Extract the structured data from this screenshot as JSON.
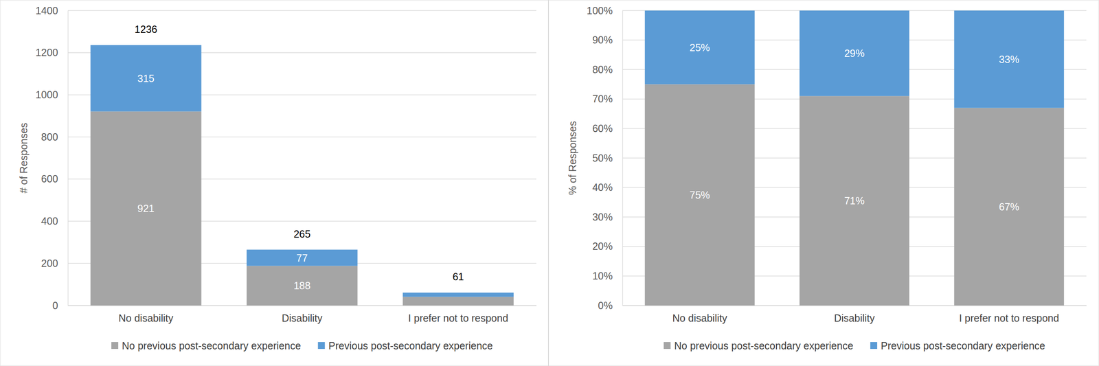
{
  "chart_data": [
    {
      "type": "bar",
      "stacked": true,
      "data_labels": true,
      "grid": true,
      "legend": "bottom",
      "y_label": "# of Responses",
      "categories": [
        "No disability",
        "Disability",
        "I prefer not to respond"
      ],
      "series": [
        {
          "name": "No previous post-secondary experience",
          "color": "#a5a5a5",
          "values": [
            921,
            188,
            41
          ],
          "value_labels": [
            "921",
            "188",
            null
          ]
        },
        {
          "name": "Previous post-secondary experience",
          "color": "#5b9bd5",
          "values": [
            315,
            77,
            20
          ],
          "value_labels": [
            "315",
            "77",
            null
          ]
        }
      ],
      "totals": [
        1236,
        265,
        61
      ],
      "ylim": [
        0,
        1400
      ],
      "yticks": [
        0,
        200,
        400,
        600,
        800,
        1000,
        1200,
        1400
      ]
    },
    {
      "type": "bar",
      "stacked": true,
      "data_labels": true,
      "grid": true,
      "legend": "bottom",
      "y_label": "% of Responses",
      "categories": [
        "No disability",
        "Disability",
        "I prefer not to respond"
      ],
      "series": [
        {
          "name": "No previous post-secondary experience",
          "color": "#a5a5a5",
          "values": [
            75,
            71,
            67
          ],
          "value_labels": [
            "75%",
            "71%",
            "67%"
          ]
        },
        {
          "name": "Previous post-secondary experience",
          "color": "#5b9bd5",
          "values": [
            25,
            29,
            33
          ],
          "value_labels": [
            "25%",
            "29%",
            "33%"
          ]
        }
      ],
      "ylim": [
        0,
        100
      ],
      "yticks": [
        {
          "value": 0,
          "label": "0%"
        },
        {
          "value": 10,
          "label": "10%"
        },
        {
          "value": 20,
          "label": "20%"
        },
        {
          "value": 30,
          "label": "30%"
        },
        {
          "value": 40,
          "label": "40%"
        },
        {
          "value": 50,
          "label": "50%"
        },
        {
          "value": 60,
          "label": "60%"
        },
        {
          "value": 70,
          "label": "70%"
        },
        {
          "value": 80,
          "label": "80%"
        },
        {
          "value": 90,
          "label": "90%"
        },
        {
          "value": 100,
          "label": "100%"
        }
      ]
    }
  ]
}
